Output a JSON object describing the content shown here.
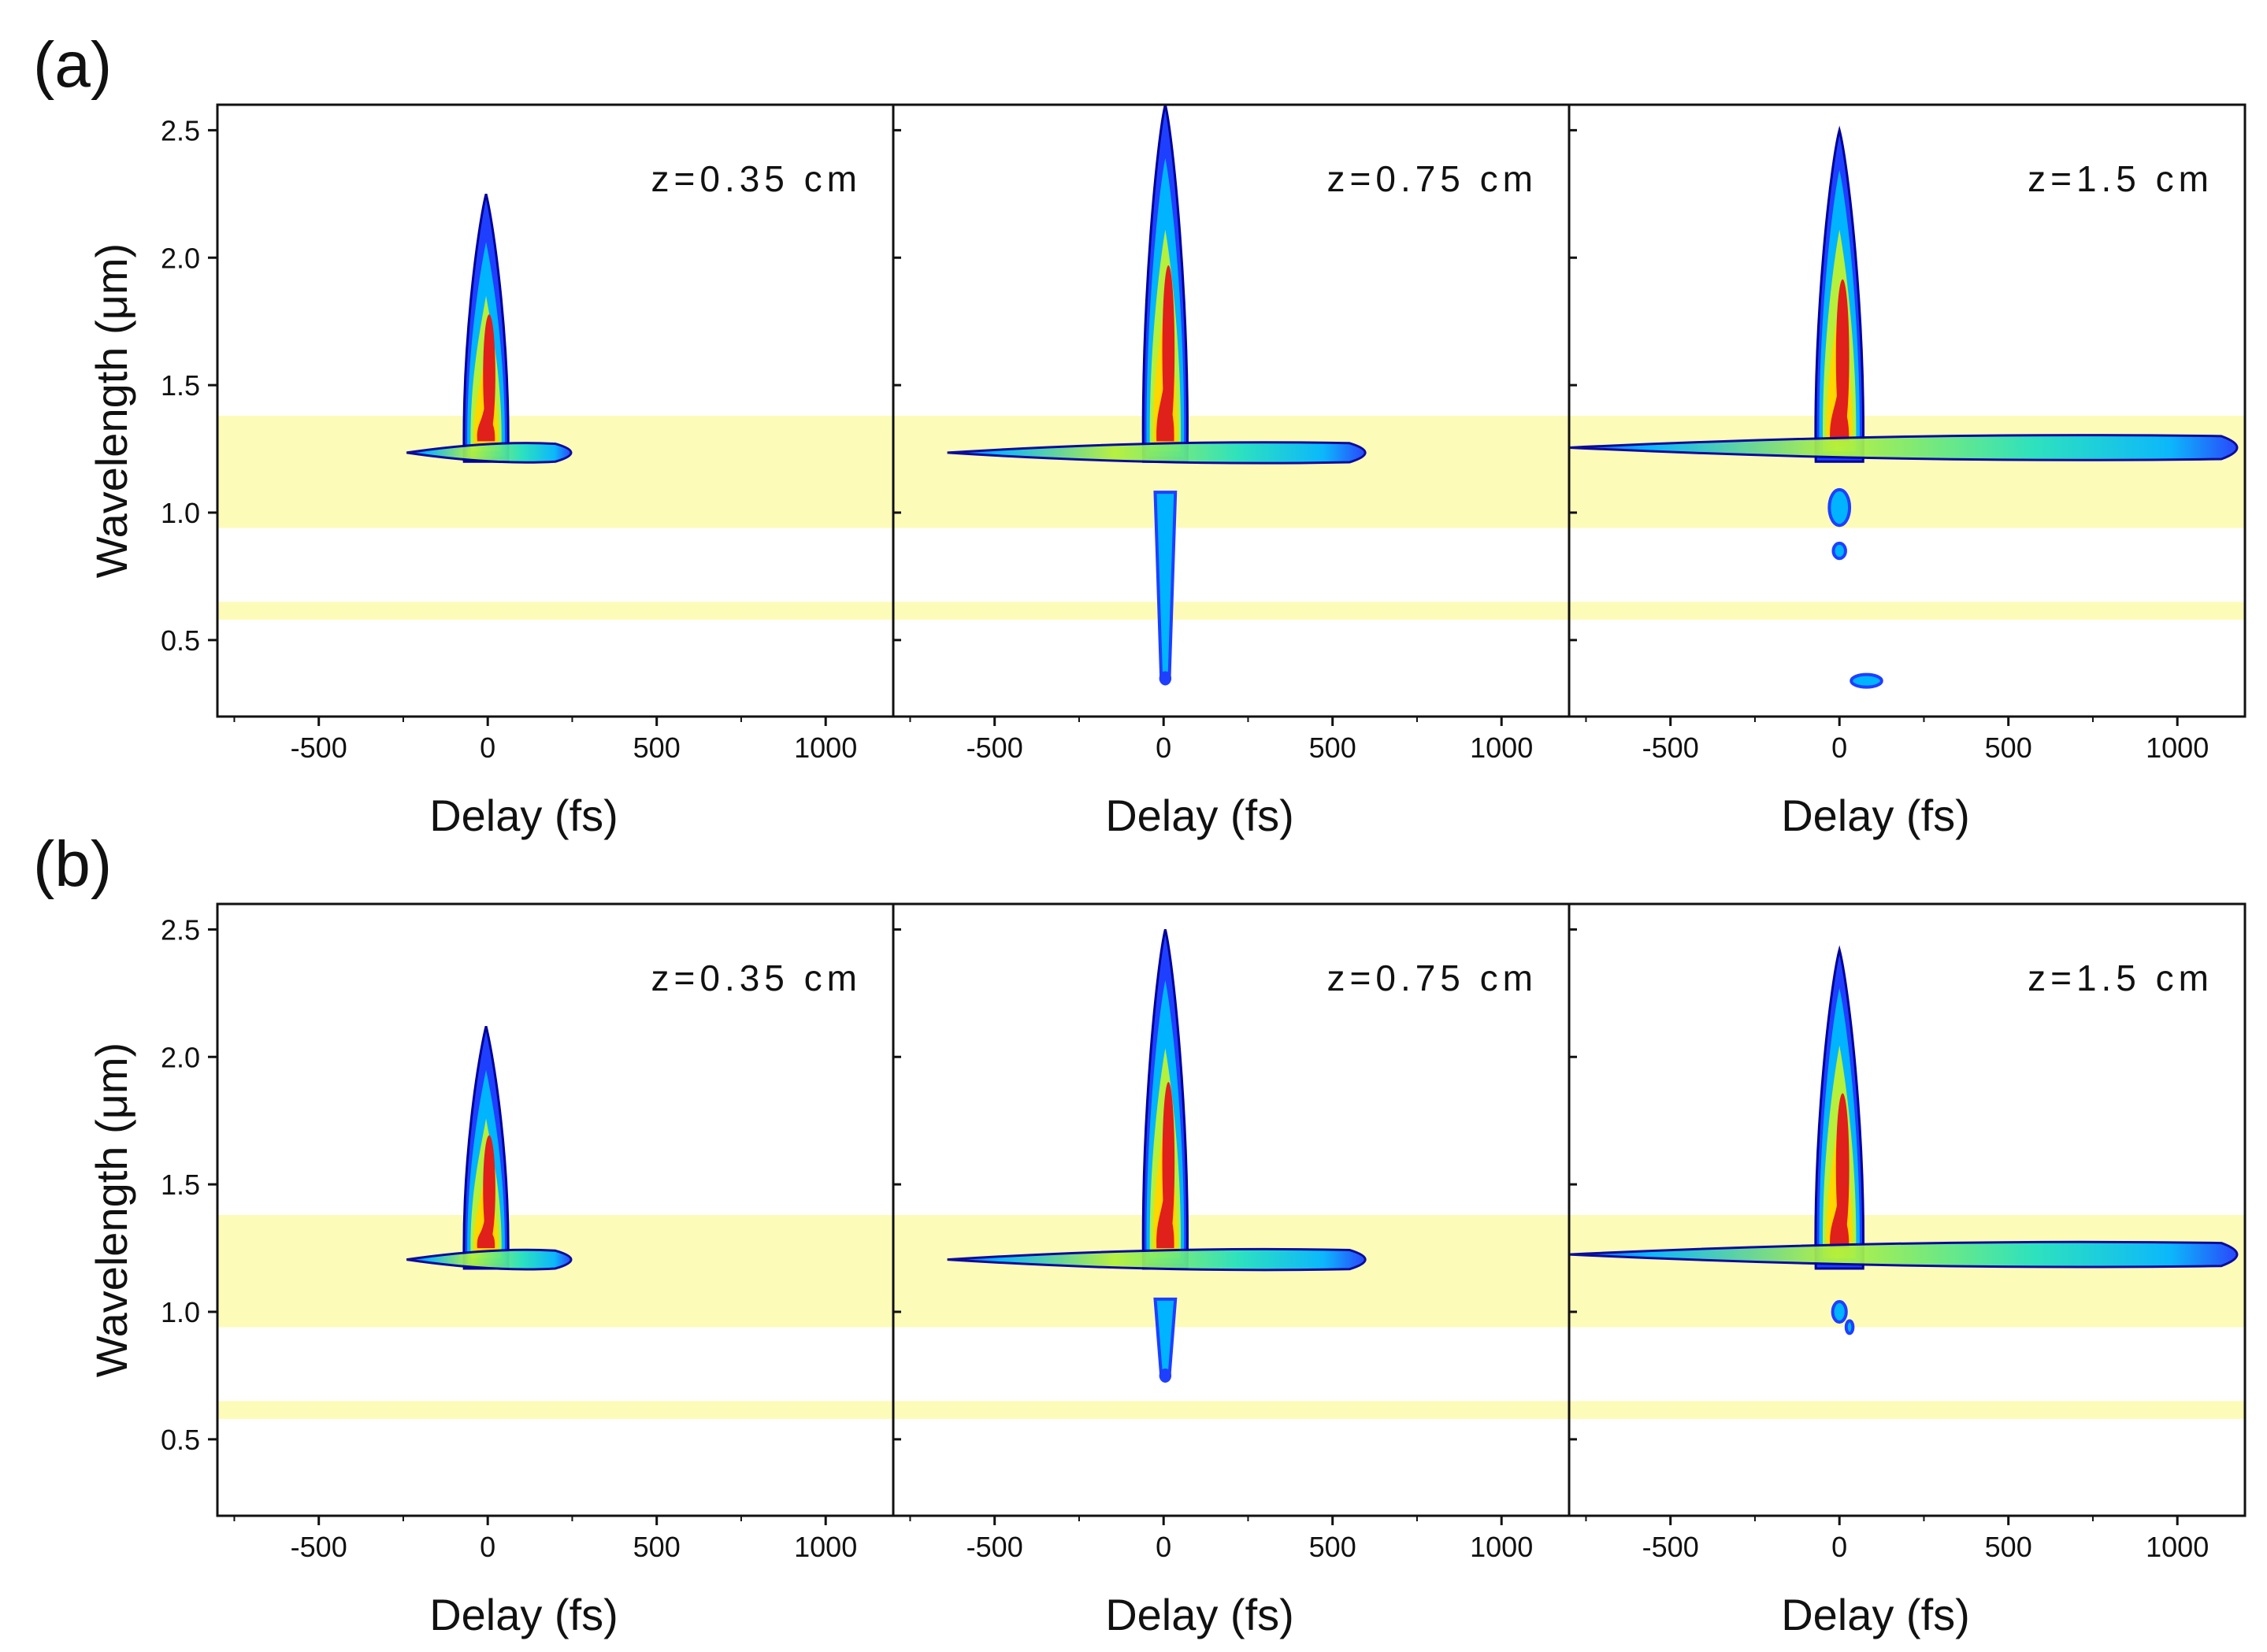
{
  "figure": {
    "rows": [
      {
        "label": "(a)",
        "panels": [
          {
            "annotation": "z=0.35 cm",
            "stage": 0
          },
          {
            "annotation": "z=0.75 cm",
            "stage": 1
          },
          {
            "annotation": "z=1.5 cm",
            "stage": 2
          }
        ]
      },
      {
        "label": "(b)",
        "panels": [
          {
            "annotation": "z=0.35 cm",
            "stage": 0
          },
          {
            "annotation": "z=0.75 cm",
            "stage": 1
          },
          {
            "annotation": "z=1.5 cm",
            "stage": 2
          }
        ]
      }
    ],
    "colormap": [
      "#00009a",
      "#1f3fff",
      "#00b4ff",
      "#22e0c0",
      "#b4f03c",
      "#ffd700",
      "#ff8c00",
      "#e0201a"
    ],
    "band_color": "#fdfbb8"
  },
  "chart_data": {
    "type": "heatmap",
    "title": "",
    "xlabel": "Delay (fs)",
    "ylabel": "Wavelength (μm)",
    "xlim": [
      -800,
      1200
    ],
    "ylim": [
      0.2,
      2.6
    ],
    "xticks": [
      -500,
      0,
      500,
      1000
    ],
    "xtick_labels": [
      "-500",
      "0",
      "500",
      "1000"
    ],
    "yticks": [
      0.5,
      1.0,
      1.5,
      2.0,
      2.5
    ],
    "ytick_labels": [
      "0.5",
      "1.0",
      "1.5",
      "2.0",
      "2.5"
    ],
    "highlight_bands_um": [
      [
        0.94,
        1.38
      ],
      [
        0.58,
        0.65
      ]
    ],
    "panels": [
      {
        "row": "(a)",
        "z": "z=0.35 cm",
        "peak_wavelength_um": 1.5,
        "spectral_extent_um": [
          1.2,
          2.25
        ],
        "delay_extent_fs": [
          -250,
          270
        ]
      },
      {
        "row": "(a)",
        "z": "z=0.75 cm",
        "peak_wavelength_um": 1.6,
        "spectral_extent_um": [
          0.35,
          2.6
        ],
        "delay_extent_fs": [
          -650,
          620
        ]
      },
      {
        "row": "(a)",
        "z": "z=1.5 cm",
        "peak_wavelength_um": 1.75,
        "spectral_extent_um": [
          0.33,
          2.5
        ],
        "delay_extent_fs": [
          -800,
          1200
        ]
      },
      {
        "row": "(b)",
        "z": "z=0.35 cm",
        "peak_wavelength_um": 1.45,
        "spectral_extent_um": [
          1.16,
          2.12
        ],
        "delay_extent_fs": [
          -280,
          270
        ]
      },
      {
        "row": "(b)",
        "z": "z=0.75 cm",
        "peak_wavelength_um": 1.55,
        "spectral_extent_um": [
          0.75,
          2.5
        ],
        "delay_extent_fs": [
          -700,
          640
        ]
      },
      {
        "row": "(b)",
        "z": "z=1.5 cm",
        "peak_wavelength_um": 1.6,
        "spectral_extent_um": [
          0.92,
          2.42
        ],
        "delay_extent_fs": [
          -800,
          1200
        ]
      }
    ]
  }
}
